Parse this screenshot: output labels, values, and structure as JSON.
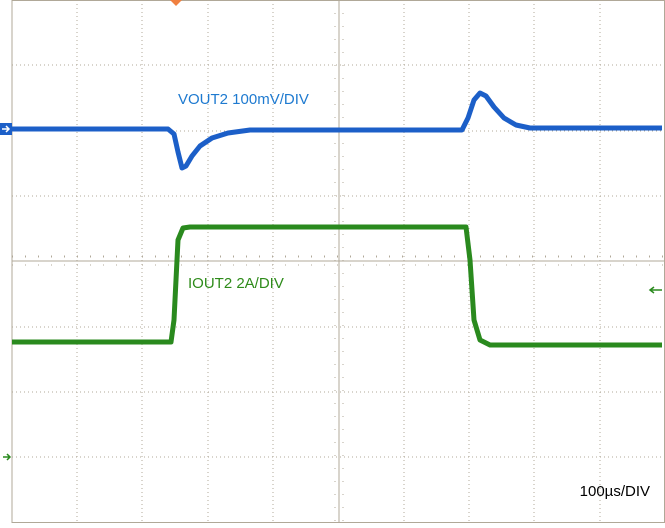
{
  "traces": [
    {
      "label": "VOUT2 100mV/DIV"
    },
    {
      "label": "IOUT2 2A/DIV"
    }
  ],
  "timebase": "100µs/DIV"
}
